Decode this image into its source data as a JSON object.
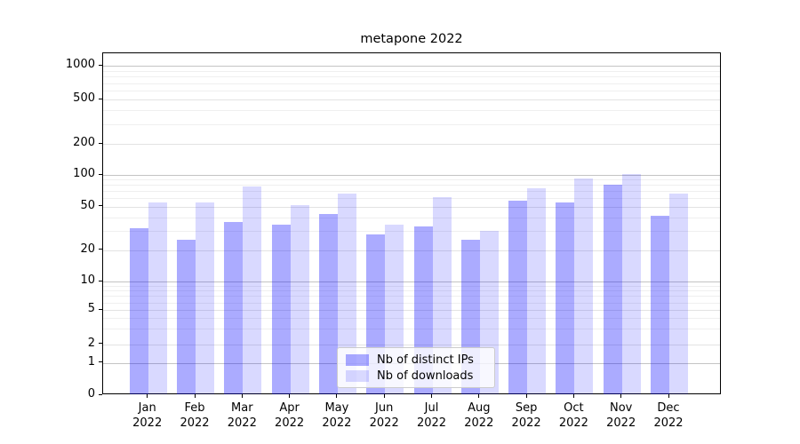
{
  "chart_data": {
    "type": "bar",
    "title": "metapone 2022",
    "categories": [
      "Jan",
      "Feb",
      "Mar",
      "Apr",
      "May",
      "Jun",
      "Jul",
      "Aug",
      "Sep",
      "Oct",
      "Nov",
      "Dec"
    ],
    "category_year": "2022",
    "series": [
      {
        "name": "Nb of distinct IPs",
        "color": "rgba(0,0,255,0.33)",
        "values": [
          32,
          25,
          36,
          34,
          43,
          28,
          33,
          25,
          57,
          55,
          80,
          41
        ]
      },
      {
        "name": "Nb of downloads",
        "color": "rgba(0,0,255,0.15)",
        "values": [
          55,
          55,
          77,
          52,
          66,
          34,
          61,
          30,
          75,
          93,
          102,
          66
        ]
      }
    ],
    "yscale": "symlog",
    "y_ticks": [
      0,
      1,
      2,
      5,
      10,
      20,
      50,
      100,
      200,
      500,
      1000
    ],
    "ylim": [
      0,
      1300
    ],
    "grid": true,
    "legend": {
      "entries": [
        "Nb of distinct IPs",
        "Nb of downloads"
      ],
      "position": "lower center"
    }
  }
}
